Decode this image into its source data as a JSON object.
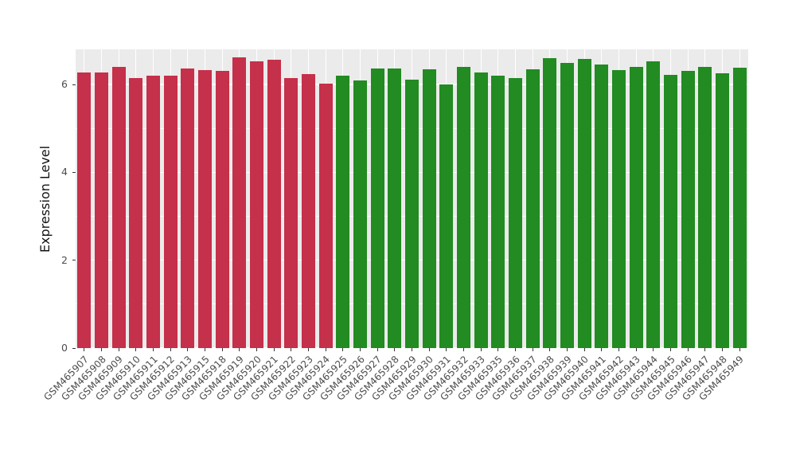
{
  "chart_data": {
    "type": "bar",
    "title": "",
    "xlabel": "",
    "ylabel": "Expression Level",
    "ylim": [
      0,
      6.8
    ],
    "yticks": [
      0,
      2,
      4,
      6
    ],
    "yminor": [
      1,
      3,
      5
    ],
    "grid": "on",
    "legend": "none",
    "panel_bg": "#EBEBEB",
    "grid_color": "#FFFFFF",
    "axis_text_color": "#4D4D4D",
    "tick_mark_color": "#333333",
    "categories": [
      "GSM465907",
      "GSM465908",
      "GSM465909",
      "GSM465910",
      "GSM465911",
      "GSM465912",
      "GSM465913",
      "GSM465915",
      "GSM465918",
      "GSM465919",
      "GSM465920",
      "GSM465921",
      "GSM465922",
      "GSM465923",
      "GSM465924",
      "GSM465925",
      "GSM465926",
      "GSM465927",
      "GSM465928",
      "GSM465929",
      "GSM465930",
      "GSM465931",
      "GSM465932",
      "GSM465933",
      "GSM465935",
      "GSM465936",
      "GSM465937",
      "GSM465938",
      "GSM465939",
      "GSM465940",
      "GSM465941",
      "GSM465942",
      "GSM465943",
      "GSM465944",
      "GSM465945",
      "GSM465946",
      "GSM465947",
      "GSM465948",
      "GSM465949"
    ],
    "values": [
      6.28,
      6.27,
      6.4,
      6.15,
      6.2,
      6.21,
      6.36,
      6.32,
      6.31,
      6.62,
      6.52,
      6.56,
      6.14,
      6.24,
      6.02,
      6.21,
      6.1,
      6.36,
      6.37,
      6.12,
      6.35,
      6.0,
      6.41,
      6.28,
      6.2,
      6.14,
      6.35,
      6.6,
      6.5,
      6.59,
      6.46,
      6.33,
      6.41,
      6.52,
      6.22,
      6.31,
      6.4,
      6.26,
      6.38
    ],
    "groups": [
      "A",
      "A",
      "A",
      "A",
      "A",
      "A",
      "A",
      "A",
      "A",
      "A",
      "A",
      "A",
      "A",
      "A",
      "A",
      "B",
      "B",
      "B",
      "B",
      "B",
      "B",
      "B",
      "B",
      "B",
      "B",
      "B",
      "B",
      "B",
      "B",
      "B",
      "B",
      "B",
      "B",
      "B",
      "B",
      "B",
      "B",
      "B",
      "B"
    ],
    "group_colors": {
      "A": "#C5304A",
      "B": "#228B22"
    }
  }
}
